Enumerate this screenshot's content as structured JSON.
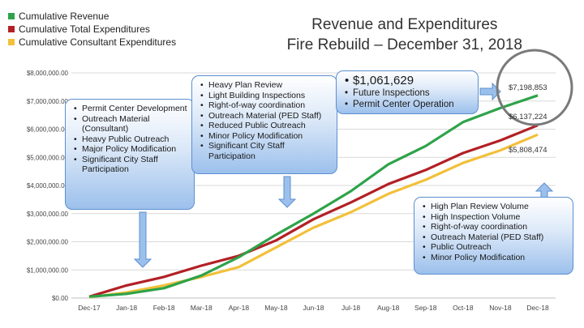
{
  "title": {
    "line1": "Revenue and Expenditures",
    "line2": "Fire Rebuild – December 31, 2018"
  },
  "colors": {
    "revenue": "#2ea34a",
    "total": "#b22025",
    "consultant": "#f2c03a",
    "gridline": "#d9d9d9",
    "circle": "#7a7a7a",
    "callout_border": "#5b8fd1",
    "arrow_fill": "#9cc0ec"
  },
  "callouts": {
    "box1": [
      "Permit Center Development",
      "Outreach Material (Consultant)",
      "Heavy Public Outreach",
      "Major Policy Modification",
      "Significant City Staff Participation"
    ],
    "box2": [
      "Heavy Plan Review",
      "Light Building Inspections",
      "Right-of-way coordination",
      "Outreach Material (PED Staff)",
      "Reduced Public Outreach",
      "Minor Policy Modification",
      "Significant City Staff Participation"
    ],
    "box3": [
      "$1,061,629",
      "Future Inspections",
      "Permit Center Operation"
    ],
    "box4": [
      "High Plan Review Volume",
      "High Inspection Volume",
      "Right-of-way coordination",
      "Outreach Material (PED Staff)",
      "Public Outreach",
      "Minor Policy Modification"
    ]
  },
  "end_labels": {
    "revenue": "$7,198,853",
    "total": "$6,137,224",
    "consultant": "$5,808,474"
  },
  "chart_data": {
    "type": "line",
    "categories": [
      "Dec-17",
      "Jan-18",
      "Feb-18",
      "Mar-18",
      "Apr-18",
      "May-18",
      "Jun-18",
      "Jul-18",
      "Aug-18",
      "Sep-18",
      "Oct-18",
      "Nov-18",
      "Dec-18"
    ],
    "series": [
      {
        "name": "Cumulative Revenue",
        "values": [
          50000,
          150000,
          350000,
          800000,
          1450000,
          2250000,
          3000000,
          3800000,
          4750000,
          5400000,
          6250000,
          6750000,
          7198853
        ]
      },
      {
        "name": "Cumulative Total Expenditures",
        "values": [
          50000,
          450000,
          750000,
          1150000,
          1500000,
          2050000,
          2800000,
          3400000,
          4050000,
          4550000,
          5150000,
          5600000,
          6137224
        ]
      },
      {
        "name": "Cumulative Consultant Expenditures",
        "values": [
          30000,
          200000,
          450000,
          750000,
          1100000,
          1800000,
          2500000,
          3050000,
          3700000,
          4200000,
          4800000,
          5250000,
          5808474
        ]
      }
    ],
    "yticks": [
      "$0.00",
      "$1,000,000.00",
      "$2,000,000.00",
      "$3,000,000.00",
      "$4,000,000.00",
      "$5,000,000.00",
      "$6,000,000.00",
      "$7,000,000.00",
      "$8,000,000.00"
    ],
    "ylim": [
      0,
      8000000
    ],
    "grid": true,
    "legend_position": "top-left"
  }
}
